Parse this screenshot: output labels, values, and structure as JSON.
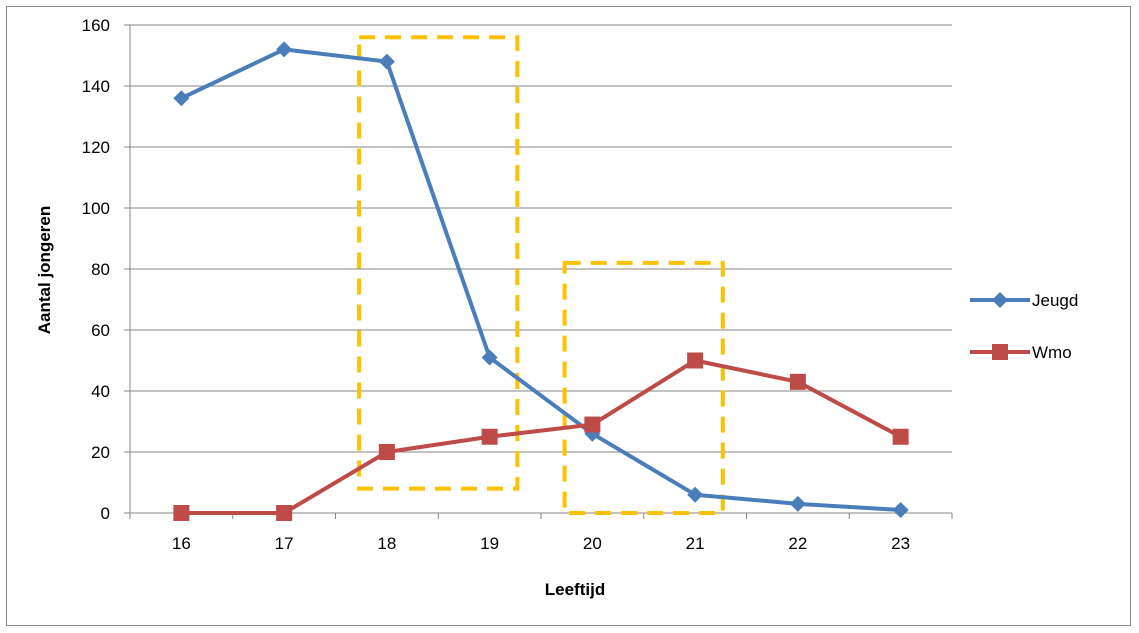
{
  "chart_data": {
    "type": "line",
    "title": "",
    "xlabel": "Leeftijd",
    "ylabel": "Aantal jongeren",
    "categories": [
      "16",
      "17",
      "18",
      "19",
      "20",
      "21",
      "22",
      "23"
    ],
    "ylim": [
      0,
      160
    ],
    "yticks": [
      "0",
      "20",
      "40",
      "60",
      "80",
      "100",
      "120",
      "140",
      "160"
    ],
    "grid": "horizontal",
    "legend": "right",
    "series": [
      {
        "name": "Jeugd",
        "values": [
          136,
          152,
          148,
          51,
          26,
          6,
          3,
          1
        ],
        "color": "#4a7ebb",
        "marker": "diamond"
      },
      {
        "name": "Wmo",
        "values": [
          0,
          0,
          20,
          25,
          29,
          50,
          43,
          25
        ],
        "color": "#be4b48",
        "marker": "square"
      }
    ],
    "annotations": [
      {
        "shape": "dashed-rectangle",
        "color": "#ffc000",
        "x_range": [
          "18",
          "19"
        ],
        "y_range": [
          8,
          156
        ]
      },
      {
        "shape": "dashed-rectangle",
        "color": "#ffc000",
        "x_range": [
          "20",
          "21"
        ],
        "y_range": [
          0,
          82
        ]
      }
    ]
  }
}
